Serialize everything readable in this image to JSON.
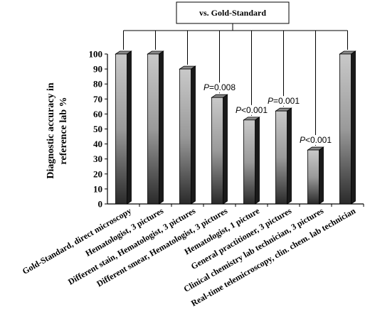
{
  "chart_data": {
    "type": "bar",
    "title": "vs. Gold-Standard",
    "ylabel": "Diagnostic accuracy in reference lab %",
    "ylabel_lines": [
      "Diagnostic accuracy in",
      "reference lab %"
    ],
    "ylim": [
      0,
      100
    ],
    "yticks": [
      "0",
      "10",
      "20",
      "30",
      "40",
      "50",
      "60",
      "70",
      "80",
      "90",
      "100"
    ],
    "grid": false,
    "categories": [
      "Gold-Standard, direct microscopy",
      "Hematologist, 3 pictures",
      "Different stain, Hematologist, 3 pictures",
      "Different smear, Hematologist, 3 pictures",
      "Hematologist, 1 picture",
      "General practitioner, 3 pictures",
      "Clinical chemistry lab technician, 3 pictures",
      "Real-time telemicroscopy, clin. chem. lab technician"
    ],
    "values": [
      100,
      100,
      90,
      71,
      56,
      62,
      36,
      100
    ],
    "annotations": [
      {
        "bar": 3,
        "p_letter": "P",
        "p_rest": "=0.008"
      },
      {
        "bar": 4,
        "p_letter": "P",
        "p_rest": "<0.001"
      },
      {
        "bar": 5,
        "p_letter": "P",
        "p_rest": "=0.001"
      },
      {
        "bar": 6,
        "p_letter": "P",
        "p_rest": "<0.001"
      }
    ]
  },
  "colors": {
    "bar_front_top": "#c9c9c9",
    "bar_front_bottom": "#2a2a2a",
    "bar_side": "#1a1a1a",
    "bar_top": "#8a8a8a"
  }
}
